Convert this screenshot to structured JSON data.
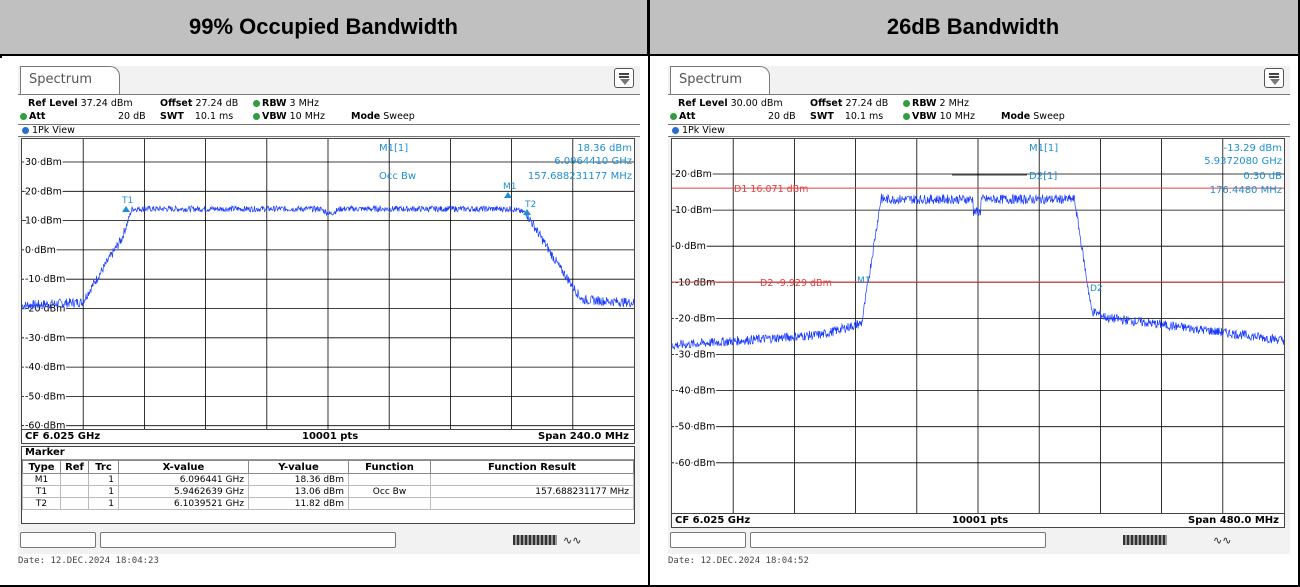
{
  "headers": {
    "left": "99% Occupied Bandwidth",
    "right": "26dB Bandwidth"
  },
  "left": {
    "tab": "Spectrum",
    "ref_level_label": "Ref Level",
    "ref_level": "37.24 dBm",
    "offset_label": "Offset",
    "offset": "27.24 dB",
    "rbw_label": "RBW",
    "rbw": "3 MHz",
    "att_label": "Att",
    "att": "20 dB",
    "swt_label": "SWT",
    "swt": "10.1 ms",
    "vbw_label": "VBW",
    "vbw": "10 MHz",
    "mode_label": "Mode",
    "mode": "Sweep",
    "view": "1Pk View",
    "marker_readout": {
      "name": "M1[1]",
      "level": "18.36 dBm",
      "freq": "6.0964410 GHz",
      "func": "Occ Bw",
      "func_value": "157.688231177 MHz"
    },
    "marker_tags": [
      "T1",
      "M1",
      "T2"
    ],
    "yticks": [
      "30 dBm",
      "20 dBm",
      "10 dBm",
      "0 dBm",
      "-10 dBm",
      "-20 dBm",
      "-30 dBm",
      "-40 dBm",
      "-50 dBm",
      "-60 dBm"
    ],
    "footer": {
      "cf": "CF 6.025 GHz",
      "pts": "10001 pts",
      "span": "Span 240.0 MHz"
    },
    "marker_table": {
      "title": "Marker",
      "columns": [
        "Type",
        "Ref",
        "Trc",
        "X-value",
        "Y-value",
        "Function",
        "Function Result"
      ],
      "rows": [
        [
          "M1",
          "",
          "1",
          "6.096441 GHz",
          "18.36 dBm",
          "",
          ""
        ],
        [
          "T1",
          "",
          "1",
          "5.9462639 GHz",
          "13.06 dBm",
          "Occ Bw",
          "157.688231177 MHz"
        ],
        [
          "T2",
          "",
          "1",
          "6.1039521 GHz",
          "11.82 dBm",
          "",
          ""
        ]
      ]
    },
    "date": "Date: 12.DEC.2024  18:04:23"
  },
  "right": {
    "tab": "Spectrum",
    "ref_level_label": "Ref Level",
    "ref_level": "30.00 dBm",
    "offset_label": "Offset",
    "offset": "27.24 dB",
    "rbw_label": "RBW",
    "rbw": "2 MHz",
    "att_label": "Att",
    "att": "20 dB",
    "swt_label": "SWT",
    "swt": "10.1 ms",
    "vbw_label": "VBW",
    "vbw": "10 MHz",
    "mode_label": "Mode",
    "mode": "Sweep",
    "view": "1Pk View",
    "marker_readout": {
      "name": "M1[1]",
      "level": "-13.29 dBm",
      "freq": "5.9372080 GHz",
      "name2": "D2[1]",
      "level2": "0.30 dB",
      "freq2": "176.4480 MHz"
    },
    "display_lines": {
      "d1": "D1  16.071 dBm",
      "d2": "D2  -9.929 dBm"
    },
    "marker_tags": [
      "M1",
      "D2"
    ],
    "yticks": [
      "20 dBm",
      "10 dBm",
      "0 dBm",
      "-10 dBm",
      "-20 dBm",
      "-30 dBm",
      "-40 dBm",
      "-50 dBm",
      "-60 dBm"
    ],
    "footer": {
      "cf": "CF 6.025 GHz",
      "pts": "10001 pts",
      "span": "Span 480.0 MHz"
    },
    "date": "Date: 12.DEC.2024  18:04:52"
  },
  "colors": {
    "trace": "#1a3cff",
    "marker_text": "#1e8fd4",
    "display_line": "#e04040",
    "grid": "#000000"
  }
}
